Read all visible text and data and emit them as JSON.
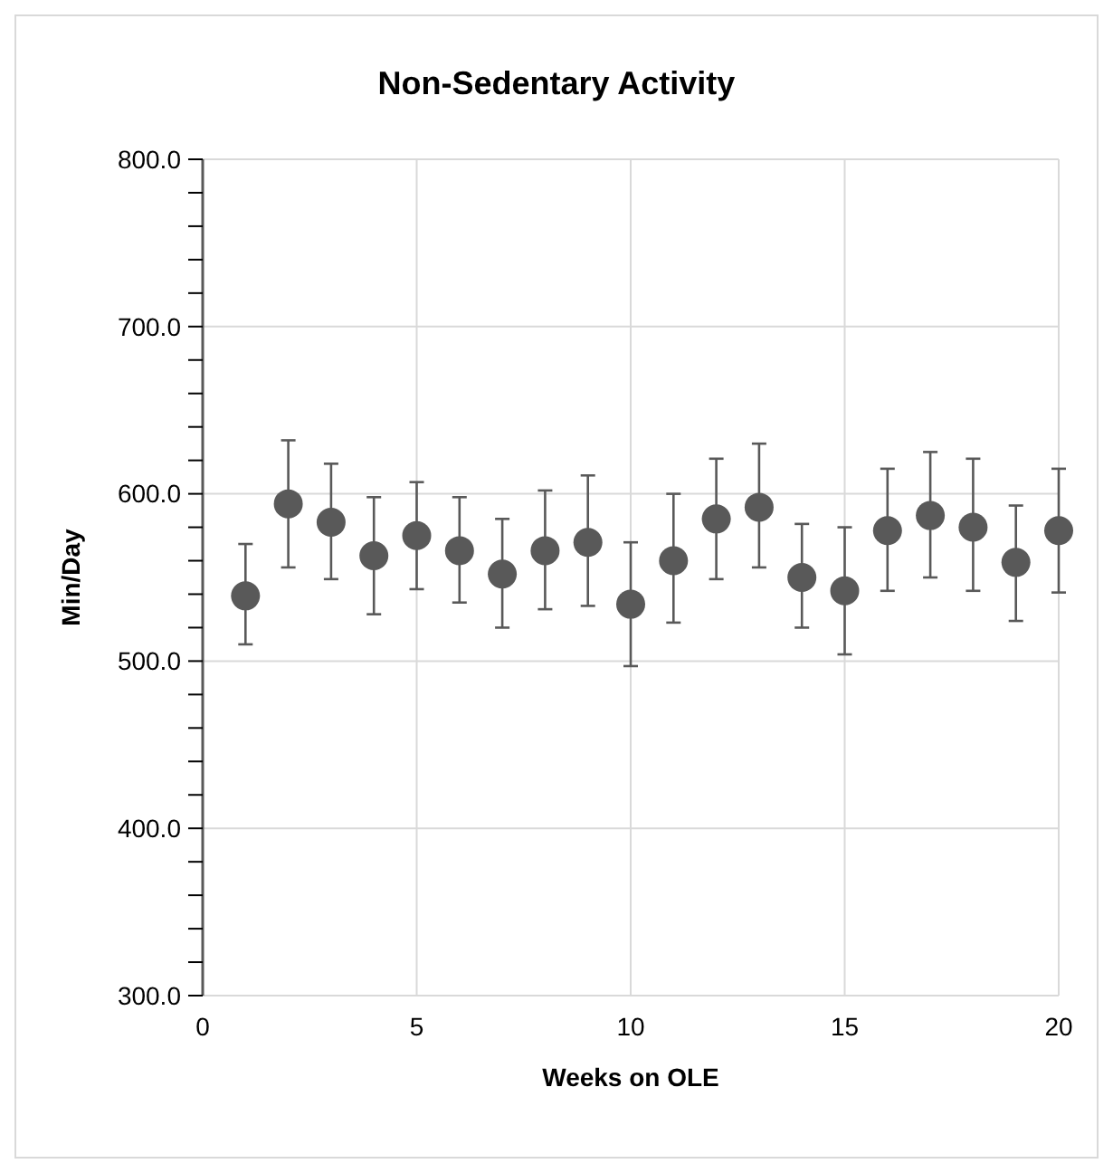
{
  "chart_data": {
    "type": "scatter",
    "title": "Non-Sedentary Activity",
    "xlabel": "Weeks on OLE",
    "ylabel": "Min/Day",
    "x": [
      1,
      2,
      3,
      4,
      5,
      6,
      7,
      8,
      9,
      10,
      11,
      12,
      13,
      14,
      15,
      16,
      17,
      18,
      19,
      20
    ],
    "series": [
      {
        "color": "#595959",
        "values": [
          539,
          594,
          583,
          563,
          575,
          566,
          552,
          566,
          571,
          534,
          560,
          585,
          592,
          550,
          542,
          578,
          587,
          580,
          559,
          578
        ],
        "errors": [
          [
            510,
            570
          ],
          [
            556,
            632
          ],
          [
            549,
            618
          ],
          [
            528,
            598
          ],
          [
            543,
            607
          ],
          [
            535,
            598
          ],
          [
            520,
            585
          ],
          [
            531,
            602
          ],
          [
            533,
            611
          ],
          [
            497,
            571
          ],
          [
            523,
            600
          ],
          [
            549,
            621
          ],
          [
            556,
            630
          ],
          [
            520,
            582
          ],
          [
            504,
            580
          ],
          [
            542,
            615
          ],
          [
            550,
            625
          ],
          [
            542,
            621
          ],
          [
            524,
            593
          ],
          [
            541,
            615
          ]
        ]
      }
    ],
    "xlim": [
      0,
      20
    ],
    "xticks": [
      0,
      5,
      10,
      15,
      20
    ],
    "ylim": [
      300,
      800
    ],
    "yticks": [
      {
        "value": 300,
        "label": "300.0"
      },
      {
        "value": 320,
        "label": null
      },
      {
        "value": 340,
        "label": null
      },
      {
        "value": 360,
        "label": null
      },
      {
        "value": 380,
        "label": null
      },
      {
        "value": 400,
        "label": "400.0"
      },
      {
        "value": 420,
        "label": null
      },
      {
        "value": 440,
        "label": null
      },
      {
        "value": 460,
        "label": null
      },
      {
        "value": 480,
        "label": null
      },
      {
        "value": 500,
        "label": "500.0"
      },
      {
        "value": 520,
        "label": null
      },
      {
        "value": 540,
        "label": null
      },
      {
        "value": 560,
        "label": null
      },
      {
        "value": 580,
        "label": null
      },
      {
        "value": 600,
        "label": "600.0"
      },
      {
        "value": 620,
        "label": null
      },
      {
        "value": 640,
        "label": null
      },
      {
        "value": 660,
        "label": null
      },
      {
        "value": 680,
        "label": null
      },
      {
        "value": 700,
        "label": "700.0"
      },
      {
        "value": 720,
        "label": null
      },
      {
        "value": 740,
        "label": null
      },
      {
        "value": 760,
        "label": null
      },
      {
        "value": 780,
        "label": null
      },
      {
        "value": 800,
        "label": "800.0"
      }
    ],
    "grid": true,
    "marker": "circle"
  }
}
